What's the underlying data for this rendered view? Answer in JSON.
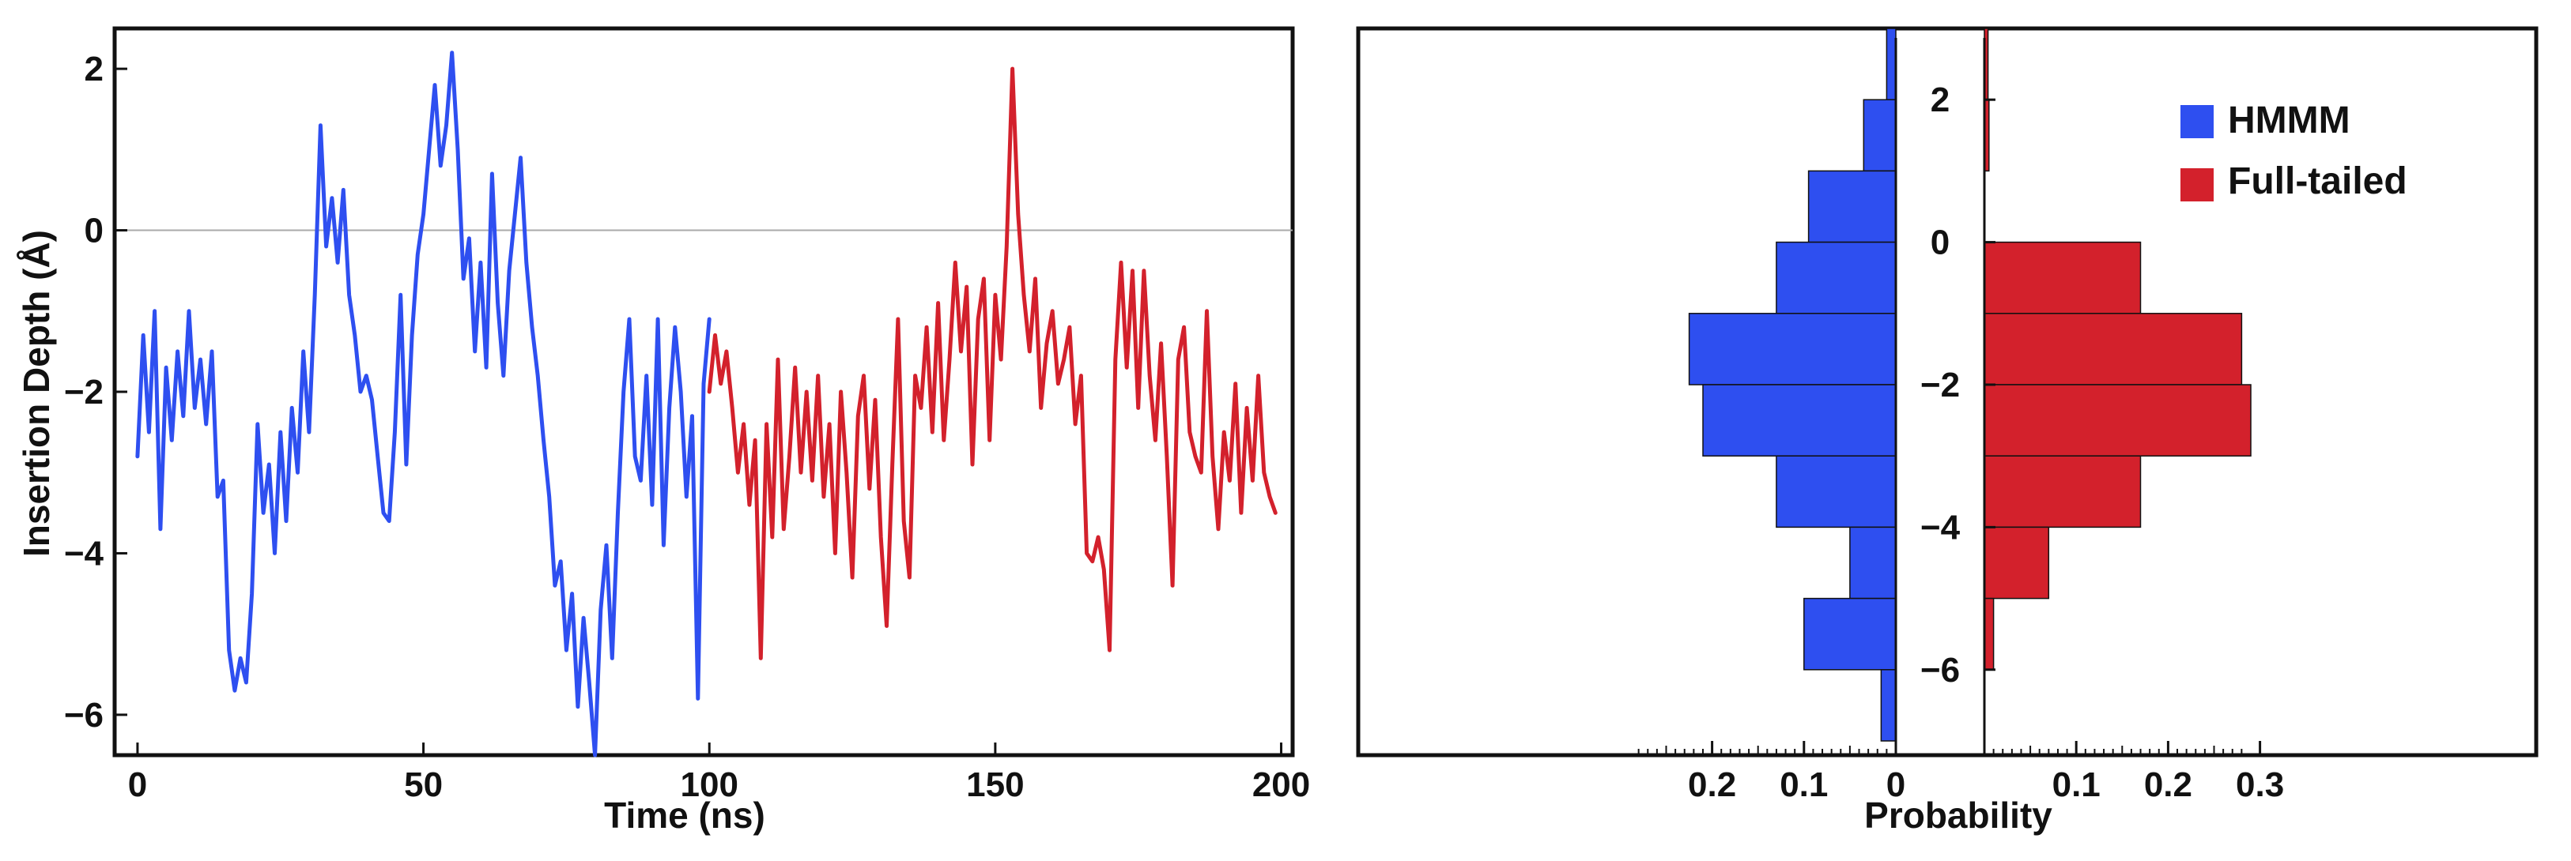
{
  "chart_data": [
    {
      "type": "line",
      "xlabel": "Time (ns)",
      "ylabel": "Insertion Depth (Å)",
      "xlim": [
        -4,
        202
      ],
      "ylim": [
        -6.5,
        2.5
      ],
      "x_ticks": [
        0,
        50,
        100,
        150,
        200
      ],
      "y_ticks": [
        -6,
        -4,
        -2,
        0,
        2
      ],
      "x_tick_labels": [
        "0",
        "50",
        "100",
        "150",
        "200"
      ],
      "y_tick_labels": [
        "−6",
        "−4",
        "−2",
        "0",
        "2"
      ],
      "reference_line_y": 0,
      "grid": false,
      "series": [
        {
          "color": "#2e4ff0",
          "x": [
            0,
            1,
            2,
            3,
            4,
            5,
            6,
            7,
            8,
            9,
            10,
            11,
            12,
            13,
            14,
            15,
            16,
            17,
            18,
            19,
            20,
            21,
            22,
            23,
            24,
            25,
            26,
            27,
            28,
            29,
            30,
            31,
            32,
            33,
            34,
            35,
            36,
            37,
            38,
            39,
            40,
            41,
            42,
            43,
            44,
            45,
            46,
            47,
            48,
            49,
            50,
            51,
            52,
            53,
            54,
            55,
            56,
            57,
            58,
            59,
            60,
            61,
            62,
            63,
            64,
            65,
            66,
            67,
            68,
            69,
            70,
            71,
            72,
            73,
            74,
            75,
            76,
            77,
            78,
            79,
            80,
            81,
            82,
            83,
            84,
            85,
            86,
            87,
            88,
            89,
            90,
            91,
            92,
            93,
            94,
            95,
            96,
            97,
            98,
            99,
            100
          ],
          "y": [
            -2.8,
            -1.3,
            -2.5,
            -1.0,
            -3.7,
            -1.7,
            -2.6,
            -1.5,
            -2.3,
            -1.0,
            -2.2,
            -1.6,
            -2.4,
            -1.5,
            -3.3,
            -3.1,
            -5.2,
            -5.7,
            -5.3,
            -5.6,
            -4.5,
            -2.4,
            -3.5,
            -2.9,
            -4.0,
            -2.5,
            -3.6,
            -2.2,
            -3.0,
            -1.5,
            -2.5,
            -0.8,
            1.3,
            -0.2,
            0.4,
            -0.4,
            0.5,
            -0.8,
            -1.3,
            -2.0,
            -1.8,
            -2.1,
            -2.8,
            -3.5,
            -3.6,
            -2.5,
            -0.8,
            -2.9,
            -1.3,
            -0.3,
            0.2,
            1.0,
            1.8,
            0.8,
            1.3,
            2.2,
            1.0,
            -0.6,
            -0.1,
            -1.5,
            -0.4,
            -1.7,
            0.7,
            -0.9,
            -1.8,
            -0.5,
            0.2,
            0.9,
            -0.4,
            -1.2,
            -1.8,
            -2.6,
            -3.3,
            -4.4,
            -4.1,
            -5.2,
            -4.5,
            -5.9,
            -4.8,
            -5.6,
            -6.5,
            -4.7,
            -3.9,
            -5.3,
            -3.5,
            -2.0,
            -1.1,
            -2.8,
            -3.1,
            -1.8,
            -3.4,
            -1.1,
            -3.9,
            -2.2,
            -1.2,
            -2.0,
            -3.3,
            -2.3,
            -5.8,
            -1.9,
            -1.1
          ]
        },
        {
          "color": "#d3212c",
          "x": [
            100,
            101,
            102,
            103,
            104,
            105,
            106,
            107,
            108,
            109,
            110,
            111,
            112,
            113,
            114,
            115,
            116,
            117,
            118,
            119,
            120,
            121,
            122,
            123,
            124,
            125,
            126,
            127,
            128,
            129,
            130,
            131,
            132,
            133,
            134,
            135,
            136,
            137,
            138,
            139,
            140,
            141,
            142,
            143,
            144,
            145,
            146,
            147,
            148,
            149,
            150,
            151,
            152,
            153,
            154,
            155,
            156,
            157,
            158,
            159,
            160,
            161,
            162,
            163,
            164,
            165,
            166,
            167,
            168,
            169,
            170,
            171,
            172,
            173,
            174,
            175,
            176,
            177,
            178,
            179,
            180,
            181,
            182,
            183,
            184,
            185,
            186,
            187,
            188,
            189,
            190,
            191,
            192,
            193,
            194,
            195,
            196,
            197,
            198,
            199
          ],
          "y": [
            -2.0,
            -1.3,
            -1.9,
            -1.5,
            -2.2,
            -3.0,
            -2.4,
            -3.4,
            -2.6,
            -5.3,
            -2.4,
            -3.8,
            -1.6,
            -3.7,
            -2.8,
            -1.7,
            -3.0,
            -2.0,
            -3.1,
            -1.8,
            -3.3,
            -2.4,
            -4.0,
            -2.0,
            -3.0,
            -4.3,
            -2.3,
            -1.8,
            -3.2,
            -2.1,
            -3.8,
            -4.9,
            -2.9,
            -1.1,
            -3.6,
            -4.3,
            -1.8,
            -2.2,
            -1.2,
            -2.5,
            -0.9,
            -2.6,
            -1.6,
            -0.4,
            -1.5,
            -0.7,
            -2.9,
            -1.1,
            -0.6,
            -2.6,
            -0.8,
            -1.6,
            -0.2,
            2.0,
            0.2,
            -0.8,
            -1.5,
            -0.6,
            -2.2,
            -1.4,
            -1.0,
            -1.9,
            -1.6,
            -1.2,
            -2.4,
            -1.8,
            -4.0,
            -4.1,
            -3.8,
            -4.2,
            -5.2,
            -1.6,
            -0.4,
            -1.7,
            -0.5,
            -2.2,
            -0.5,
            -1.8,
            -2.6,
            -1.4,
            -2.8,
            -4.4,
            -1.6,
            -1.2,
            -2.5,
            -2.8,
            -3.0,
            -1.0,
            -2.8,
            -3.7,
            -2.5,
            -3.1,
            -1.9,
            -3.5,
            -2.2,
            -3.1,
            -1.8,
            -3.0,
            -3.3,
            -3.5
          ]
        }
      ]
    },
    {
      "type": "bar",
      "orientation": "horizontal",
      "xlabel": "Probability",
      "ylabel": "",
      "xlim": [
        -0.29,
        0.31
      ],
      "ylim": [
        -7.2,
        3.0
      ],
      "x_ticks": [
        -0.2,
        -0.1,
        0,
        0.1,
        0.2,
        0.3
      ],
      "x_tick_labels": [
        "0.2",
        "0.1",
        "0",
        "0.1",
        "0.2",
        "0.3"
      ],
      "y_ticks": [
        2,
        0,
        -2,
        -4,
        -6
      ],
      "y_tick_labels": [
        "2",
        "0",
        "−2",
        "−4",
        "−6"
      ],
      "bin_edges": [
        3,
        2,
        1,
        0,
        -1,
        -2,
        -3,
        -4,
        -5,
        -6,
        -7
      ],
      "legend_position": "top-right",
      "grid": false,
      "series": [
        {
          "name": "HMMM",
          "color": "#2e4ff0",
          "direction": "left",
          "values": [
            0.01,
            0.035,
            0.095,
            0.13,
            0.225,
            0.21,
            0.13,
            0.05,
            0.1,
            0.016
          ]
        },
        {
          "name": "Full-tailed",
          "color": "#d3212c",
          "direction": "right",
          "values": [
            0.004,
            0.005,
            0.0,
            0.17,
            0.28,
            0.29,
            0.17,
            0.07,
            0.01,
            0.0
          ]
        }
      ]
    }
  ]
}
